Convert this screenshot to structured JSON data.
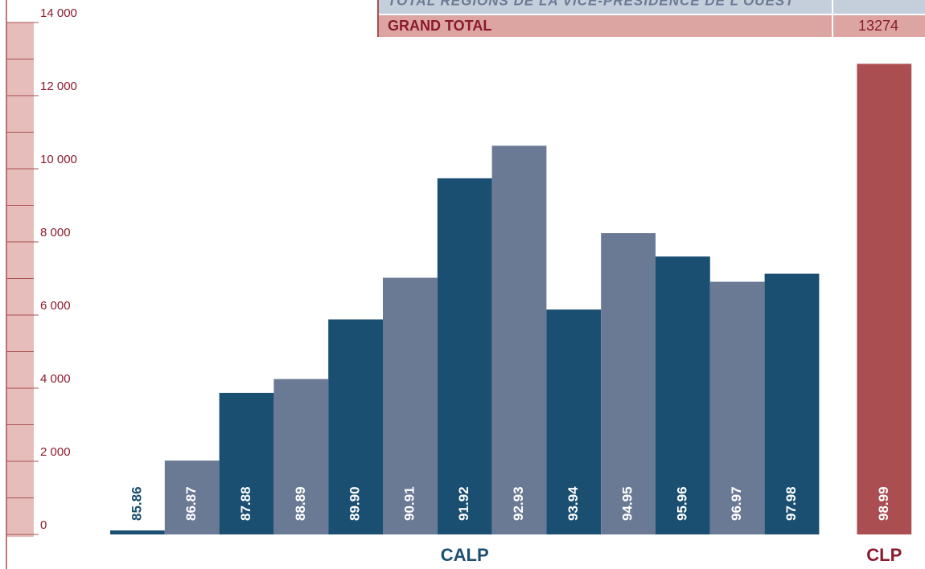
{
  "chart_data": {
    "type": "bar",
    "table": {
      "rows": [
        [
          "TOTAL RÉGIONS DE LA VICE-PRÉSIDENCE DE L'OUEST"
        ],
        [
          "GRAND TOTAL",
          "13274"
        ]
      ]
    },
    "categories": [
      "85.86",
      "86.87",
      "87.88",
      "88.89",
      "89.90",
      "90.91",
      "91.92",
      "92.93",
      "93.94",
      "94.95",
      "95.96",
      "96.97",
      "97.98",
      "98.99"
    ],
    "values": [
      110,
      2020,
      3870,
      4250,
      5880,
      7020,
      9740,
      10630,
      6150,
      8240,
      7600,
      6910,
      7130,
      12870
    ],
    "colors": [
      "#1a4f72",
      "#6b7a94",
      "#1a4f72",
      "#6b7a94",
      "#1a4f72",
      "#6b7a94",
      "#1a4f72",
      "#6b7a94",
      "#1a4f72",
      "#6b7a94",
      "#1a4f72",
      "#6b7a94",
      "#1a4f72",
      "#ab4e52"
    ],
    "groups": [
      {
        "name": "CALP",
        "first": 0,
        "last": 12,
        "color": "#1a4f72"
      },
      {
        "name": "CLP",
        "first": 13,
        "last": 13,
        "color": "#8b1a2e"
      }
    ],
    "ylim": [
      0,
      14000
    ],
    "yticks": [
      0,
      {
        "value": 2000,
        "label": "2 000"
      },
      {
        "value": 4000,
        "label": "4 000"
      },
      {
        "value": 6000,
        "label": "6 000"
      },
      {
        "value": 8000,
        "label": "8 000"
      },
      {
        "value": 10000,
        "label": "10 000"
      },
      {
        "value": 12000,
        "label": "12 000"
      },
      {
        "value": 14000,
        "label": "14 000"
      }
    ]
  }
}
